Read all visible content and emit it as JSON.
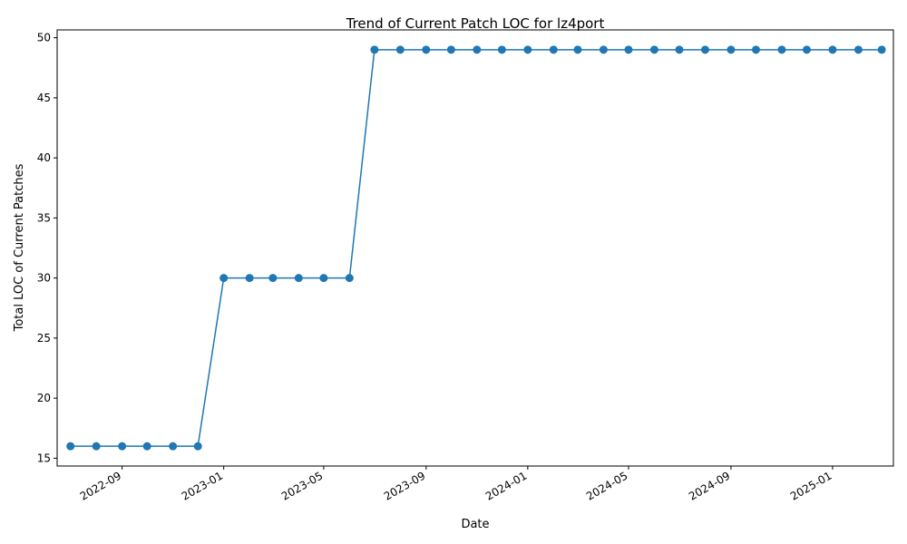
{
  "chart_data": {
    "type": "line",
    "title": "Trend of Current Patch LOC for lz4port",
    "xlabel": "Date",
    "ylabel": "Total LOC of Current Patches",
    "xlim": [
      "2022-06-15",
      "2025-03-15"
    ],
    "ylim": [
      14.35,
      50.65
    ],
    "x_ticks": [
      "2022-09",
      "2023-01",
      "2023-05",
      "2023-09",
      "2024-01",
      "2024-05",
      "2024-09",
      "2025-01"
    ],
    "y_ticks": [
      15,
      20,
      25,
      30,
      35,
      40,
      45,
      50
    ],
    "grid": false,
    "color": "#1f77b4",
    "series": [
      {
        "x": [
          "2022-07-01",
          "2022-08-01",
          "2022-09-01",
          "2022-10-01",
          "2022-11-01",
          "2022-12-01",
          "2023-01-01",
          "2023-02-01",
          "2023-03-01",
          "2023-04-01",
          "2023-05-01",
          "2023-06-01",
          "2023-07-01",
          "2023-08-01",
          "2023-09-01",
          "2023-10-01",
          "2023-11-01",
          "2023-12-01",
          "2024-01-01",
          "2024-02-01",
          "2024-03-01",
          "2024-04-01",
          "2024-05-01",
          "2024-06-01",
          "2024-07-01",
          "2024-08-01",
          "2024-09-01",
          "2024-10-01",
          "2024-11-01",
          "2024-12-01",
          "2025-01-01",
          "2025-02-01",
          "2025-03-01"
        ],
        "values": [
          16,
          16,
          16,
          16,
          16,
          16,
          30,
          30,
          30,
          30,
          30,
          30,
          49,
          49,
          49,
          49,
          49,
          49,
          49,
          49,
          49,
          49,
          49,
          49,
          49,
          49,
          49,
          49,
          49,
          49,
          49,
          49,
          49
        ]
      }
    ]
  }
}
